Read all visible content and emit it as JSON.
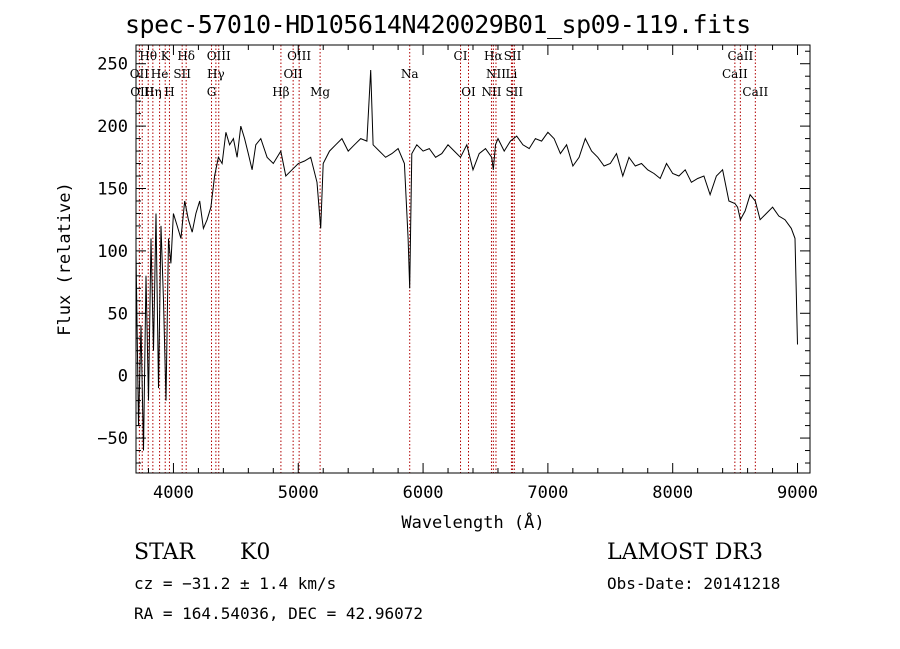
{
  "chart_data": {
    "type": "line",
    "title": "spec-57010-HD105614N420029B01_sp09-119.fits",
    "xlabel": "Wavelength (Å)",
    "ylabel": "Flux (relative)",
    "xlim": [
      3700,
      9100
    ],
    "ylim": [
      -78,
      265
    ],
    "xticks": [
      4000,
      5000,
      6000,
      7000,
      8000,
      9000
    ],
    "yticks": [
      -50,
      0,
      50,
      100,
      150,
      200,
      250
    ],
    "series": [
      {
        "name": "flux",
        "color": "#000000",
        "x": [
          3700,
          3720,
          3740,
          3760,
          3780,
          3800,
          3820,
          3840,
          3860,
          3880,
          3900,
          3920,
          3940,
          3960,
          3980,
          4000,
          4030,
          4060,
          4090,
          4120,
          4150,
          4180,
          4210,
          4240,
          4270,
          4300,
          4330,
          4360,
          4390,
          4420,
          4450,
          4480,
          4510,
          4540,
          4570,
          4600,
          4630,
          4660,
          4700,
          4750,
          4800,
          4860,
          4900,
          4950,
          5000,
          5050,
          5100,
          5150,
          5180,
          5200,
          5250,
          5300,
          5350,
          5400,
          5450,
          5500,
          5550,
          5580,
          5600,
          5650,
          5700,
          5750,
          5800,
          5850,
          5880,
          5893,
          5910,
          5950,
          6000,
          6050,
          6100,
          6150,
          6200,
          6250,
          6300,
          6350,
          6400,
          6450,
          6500,
          6550,
          6563,
          6580,
          6600,
          6650,
          6700,
          6750,
          6800,
          6850,
          6900,
          6950,
          7000,
          7050,
          7100,
          7150,
          7200,
          7250,
          7300,
          7350,
          7400,
          7450,
          7500,
          7550,
          7600,
          7650,
          7700,
          7750,
          7800,
          7850,
          7900,
          7950,
          8000,
          8050,
          8100,
          8150,
          8200,
          8250,
          8300,
          8350,
          8400,
          8450,
          8498,
          8520,
          8542,
          8580,
          8620,
          8662,
          8700,
          8750,
          8800,
          8850,
          8900,
          8950,
          8980,
          9000
        ],
        "y": [
          100,
          -40,
          40,
          -60,
          80,
          -20,
          110,
          20,
          130,
          -10,
          120,
          60,
          -20,
          110,
          90,
          130,
          120,
          110,
          140,
          125,
          115,
          130,
          140,
          118,
          125,
          135,
          160,
          175,
          170,
          195,
          185,
          190,
          175,
          200,
          190,
          178,
          165,
          185,
          190,
          175,
          170,
          180,
          160,
          165,
          170,
          172,
          175,
          155,
          118,
          170,
          180,
          185,
          190,
          180,
          185,
          190,
          188,
          245,
          185,
          180,
          175,
          178,
          182,
          170,
          110,
          70,
          178,
          185,
          180,
          182,
          175,
          178,
          185,
          180,
          175,
          185,
          165,
          178,
          182,
          175,
          165,
          185,
          190,
          180,
          188,
          192,
          185,
          182,
          190,
          188,
          195,
          190,
          178,
          185,
          168,
          175,
          190,
          180,
          175,
          168,
          170,
          178,
          160,
          175,
          168,
          170,
          165,
          162,
          158,
          170,
          162,
          160,
          165,
          155,
          158,
          160,
          145,
          160,
          165,
          140,
          138,
          135,
          125,
          132,
          145,
          140,
          125,
          130,
          135,
          128,
          125,
          118,
          110,
          25
        ]
      }
    ],
    "lines_top": [
      {
        "label": "Hδ",
        "x": 4102,
        "row": 0
      },
      {
        "label": "K",
        "x": 3934,
        "row": 0
      },
      {
        "label": "Hθ",
        "x": 3798,
        "row": 0
      },
      {
        "label": "OIII",
        "x": 4363,
        "row": 0
      },
      {
        "label": "OIII",
        "x": 5007,
        "row": 0
      },
      {
        "label": "CI",
        "x": 6300,
        "row": 0
      },
      {
        "label": "Hα",
        "x": 6563,
        "row": 0
      },
      {
        "label": "SII",
        "x": 6717,
        "row": 0
      },
      {
        "label": "CaII",
        "x": 8542,
        "row": 0
      },
      {
        "label": "OII",
        "x": 3727,
        "row": 1
      },
      {
        "label": "He",
        "x": 3889,
        "row": 1
      },
      {
        "label": "SII",
        "x": 4070,
        "row": 1
      },
      {
        "label": "Hγ",
        "x": 4340,
        "row": 1
      },
      {
        "label": "OII",
        "x": 4959,
        "row": 1
      },
      {
        "label": "Na",
        "x": 5893,
        "row": 1
      },
      {
        "label": "NII",
        "x": 6584,
        "row": 1
      },
      {
        "label": "Li",
        "x": 6708,
        "row": 1
      },
      {
        "label": "CaII",
        "x": 8498,
        "row": 1
      },
      {
        "label": "OIII",
        "x": 3750,
        "row": 2
      },
      {
        "label": "Hη",
        "x": 3835,
        "row": 2
      },
      {
        "label": "H",
        "x": 3968,
        "row": 2
      },
      {
        "label": "G",
        "x": 4305,
        "row": 2
      },
      {
        "label": "Hβ",
        "x": 4861,
        "row": 2
      },
      {
        "label": "Mg",
        "x": 5175,
        "row": 2
      },
      {
        "label": "OI",
        "x": 6364,
        "row": 2
      },
      {
        "label": "NII",
        "x": 6548,
        "row": 2
      },
      {
        "label": "SII",
        "x": 6731,
        "row": 2
      },
      {
        "label": "CaII",
        "x": 8662,
        "row": 2
      }
    ],
    "line_color": "#b00000"
  },
  "footer": {
    "star_type": "STAR",
    "subclass": "K0",
    "survey": "LAMOST DR3",
    "cz": "cz = −31.2 ± 1.4 km/s",
    "obs_date": "Obs-Date: 20141218",
    "radec": "RA = 164.54036, DEC =  42.96072"
  }
}
